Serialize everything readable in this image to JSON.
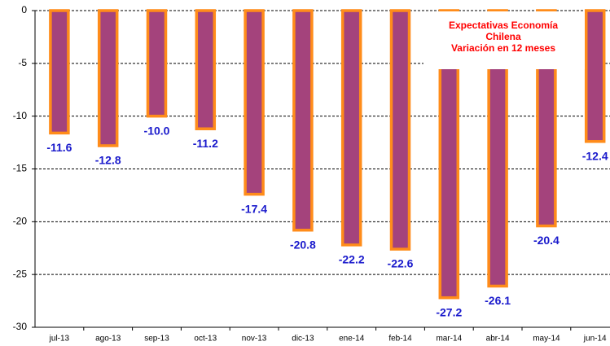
{
  "chart_data": {
    "type": "bar",
    "title": [
      "Expectativas Economía",
      "Chilena",
      "Variación en 12 meses"
    ],
    "categories": [
      "jul-13",
      "ago-13",
      "sep-13",
      "oct-13",
      "nov-13",
      "dic-13",
      "ene-14",
      "feb-14",
      "mar-14",
      "abr-14",
      "may-14",
      "jun-14"
    ],
    "values": [
      -11.6,
      -12.8,
      -10.0,
      -11.2,
      -17.4,
      -20.8,
      -22.2,
      -22.6,
      -27.2,
      -26.1,
      -20.4,
      -12.4
    ],
    "value_labels": [
      "-11.6",
      "-12.8",
      "-10.0",
      "-11.2",
      "-17.4",
      "-20.8",
      "-22.2",
      "-22.6",
      "-27.2",
      "-26.1",
      "-20.4",
      "-12.4"
    ],
    "color": "#a4437c",
    "edge_color": "#ff8c1a",
    "label_color": "#1a1acc",
    "title_color": "#ff0000",
    "ylim": [
      -30,
      0
    ],
    "yticks": [
      0,
      -5,
      -10,
      -15,
      -20,
      -25,
      -30
    ],
    "grid": true
  }
}
